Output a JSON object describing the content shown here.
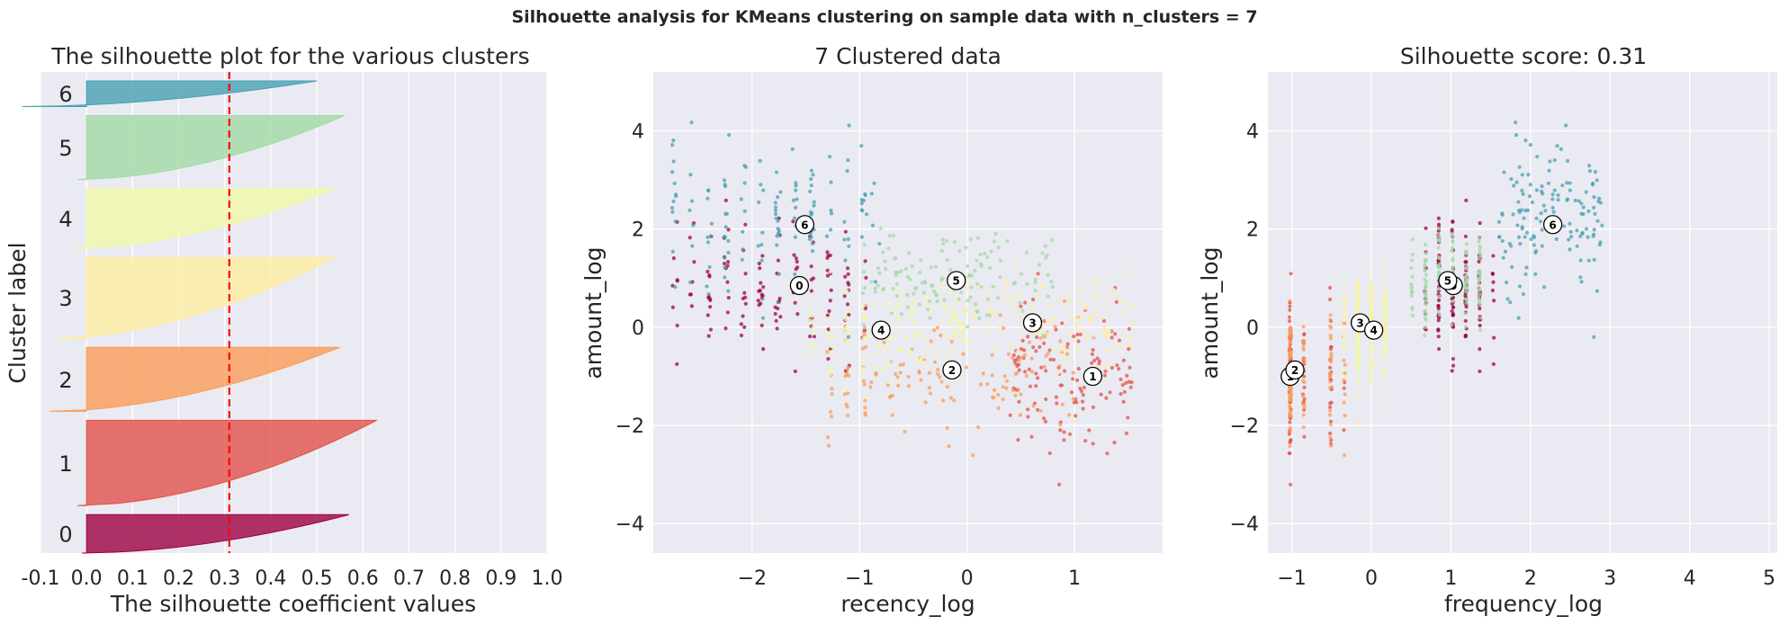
{
  "figure": {
    "suptitle": "Silhouette analysis for KMeans clustering on sample data with n_clusters = 7"
  },
  "colors": {
    "cluster": [
      "#9e0142",
      "#e1514a",
      "#fa9c58",
      "#feeda1",
      "#f0f9a8",
      "#a2d9a4",
      "#47a0b3"
    ],
    "background": "#eaeaf2",
    "grid": "#ffffff",
    "threshold_line": "#ff0000"
  },
  "chart_data": [
    {
      "type": "silhouette",
      "title": "The silhouette plot for the various clusters",
      "xlabel": "The silhouette coefficient values",
      "ylabel": "Cluster label",
      "xlim": [
        -0.1,
        1.0
      ],
      "xticks": [
        "-0.1",
        "0.0",
        "0.1",
        "0.2",
        "0.3",
        "0.4",
        "0.5",
        "0.6",
        "0.7",
        "0.8",
        "0.9",
        "1.0"
      ],
      "average_silhouette_score": 0.31,
      "grid": true,
      "clusters": [
        {
          "label": "0",
          "relative_size": 0.09,
          "max_value": 0.57,
          "min_value": -0.01
        },
        {
          "label": "1",
          "relative_size": 0.2,
          "max_value": 0.63,
          "min_value": -0.02
        },
        {
          "label": "2",
          "relative_size": 0.15,
          "max_value": 0.55,
          "min_value": -0.08
        },
        {
          "label": "3",
          "relative_size": 0.19,
          "max_value": 0.54,
          "min_value": -0.07
        },
        {
          "label": "4",
          "relative_size": 0.14,
          "max_value": 0.54,
          "min_value": -0.03
        },
        {
          "label": "5",
          "relative_size": 0.15,
          "max_value": 0.56,
          "min_value": -0.02
        },
        {
          "label": "6",
          "relative_size": 0.06,
          "max_value": 0.5,
          "min_value": -0.14
        }
      ]
    },
    {
      "type": "scatter",
      "title": "7 Clustered data",
      "xlabel": "recency_log",
      "ylabel": "amount_log",
      "xlim": [
        -2.92,
        1.82
      ],
      "ylim": [
        -4.6,
        5.2
      ],
      "xticks": [
        "−2",
        "−1",
        "0",
        "1"
      ],
      "yticks": [
        "−4",
        "−2",
        "0",
        "2",
        "4"
      ],
      "grid": true,
      "centers": [
        {
          "label": "0",
          "x": -1.56,
          "y": 0.85
        },
        {
          "label": "1",
          "x": 1.17,
          "y": -1.0
        },
        {
          "label": "2",
          "x": -0.14,
          "y": -0.87
        },
        {
          "label": "3",
          "x": 0.61,
          "y": 0.09
        },
        {
          "label": "4",
          "x": -0.8,
          "y": -0.06
        },
        {
          "label": "5",
          "x": -0.1,
          "y": 0.95
        },
        {
          "label": "6",
          "x": -1.51,
          "y": 2.09
        }
      ],
      "distribution": [
        {
          "cluster": "0",
          "x_range": [
            -2.75,
            -1.0
          ],
          "y_mean": 0.8,
          "y_spread": 0.7
        },
        {
          "cluster": "1",
          "x_range": [
            0.4,
            1.55
          ],
          "y_mean": -1.0,
          "y_spread": 0.65
        },
        {
          "cluster": "2",
          "x_range": [
            -1.3,
            1.0
          ],
          "y_mean": -0.9,
          "y_spread": 0.6
        },
        {
          "cluster": "3",
          "x_range": [
            -0.2,
            1.55
          ],
          "y_mean": 0.1,
          "y_spread": 0.5
        },
        {
          "cluster": "4",
          "x_range": [
            -1.5,
            0.0
          ],
          "y_mean": -0.05,
          "y_spread": 0.5
        },
        {
          "cluster": "5",
          "x_range": [
            -1.0,
            0.8
          ],
          "y_mean": 0.95,
          "y_spread": 0.5
        },
        {
          "cluster": "6",
          "x_range": [
            -2.75,
            -0.8
          ],
          "y_mean": 2.2,
          "y_spread": 0.8
        }
      ]
    },
    {
      "type": "scatter",
      "title": "Silhouette score: 0.31",
      "xlabel": "frequency_log",
      "ylabel": "amount_log",
      "xlim": [
        -1.3,
        5.1
      ],
      "ylim": [
        -4.6,
        5.2
      ],
      "xticks": [
        "−1",
        "0",
        "1",
        "2",
        "3",
        "4",
        "5"
      ],
      "yticks": [
        "−4",
        "−2",
        "0",
        "2",
        "4"
      ],
      "grid": true,
      "centers": [
        {
          "label": "0",
          "x": 1.03,
          "y": 0.85
        },
        {
          "label": "1",
          "x": -1.02,
          "y": -1.0
        },
        {
          "label": "2",
          "x": -0.96,
          "y": -0.87
        },
        {
          "label": "3",
          "x": -0.14,
          "y": 0.09
        },
        {
          "label": "4",
          "x": 0.03,
          "y": -0.06
        },
        {
          "label": "5",
          "x": 0.96,
          "y": 0.95
        },
        {
          "label": "6",
          "x": 2.28,
          "y": 2.09
        }
      ]
    }
  ]
}
